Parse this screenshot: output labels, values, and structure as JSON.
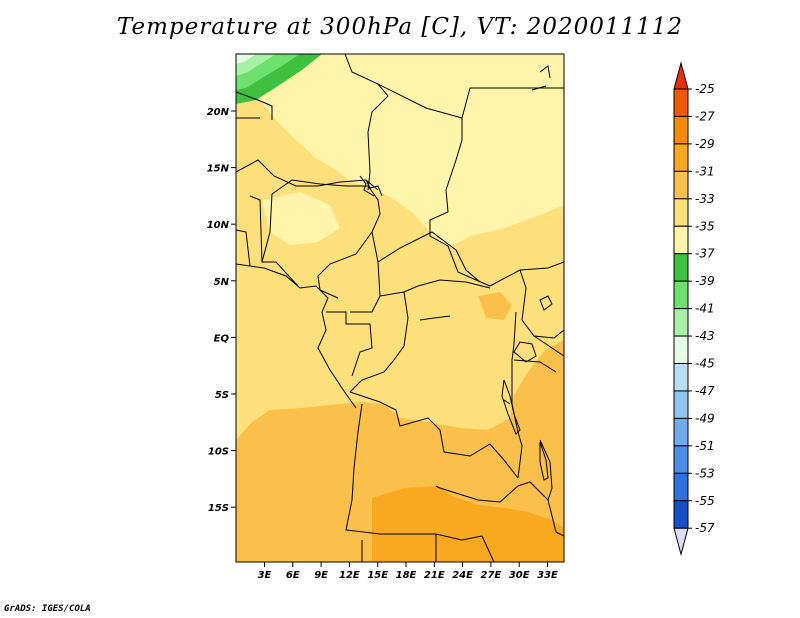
{
  "title": "Temperature at 300hPa [C], VT: 2020011112",
  "credit": "GrADS: IGES/COLA",
  "x_ticks": [
    "3E",
    "6E",
    "9E",
    "12E",
    "15E",
    "18E",
    "21E",
    "24E",
    "27E",
    "30E",
    "33E"
  ],
  "y_ticks": [
    "20N",
    "15N",
    "10N",
    "5N",
    "EQ",
    "5S",
    "10S",
    "15S"
  ],
  "colorbar": {
    "labels": [
      "-25",
      "-27",
      "-29",
      "-31",
      "-33",
      "-35",
      "-37",
      "-39",
      "-41",
      "-43",
      "-45",
      "-47",
      "-49",
      "-51",
      "-53",
      "-55",
      "-57"
    ],
    "colors": [
      "#f05a05",
      "#f58a05",
      "#f9a91f",
      "#fbc04c",
      "#fde07c",
      "#fff4a9",
      "#3fc13f",
      "#6ee06e",
      "#a6f1a6",
      "#e4fbe4",
      "#b8def4",
      "#92c6f0",
      "#6faaed",
      "#4f8ee6",
      "#2f71dd",
      "#1550c6",
      "#08139d"
    ],
    "top_arrow_color": "#e8300a",
    "bottom_arrow_color": "#dcdcf8"
  },
  "field_colors": {
    "band_33_31": "#fde07c",
    "band_35_33": "#fff4a9",
    "band_31_29": "#fbc04c",
    "band_29_27": "#f9a91f",
    "cold_37": "#3fc13f",
    "cold_39": "#6ee06e",
    "cold_41": "#a6f1a6",
    "cold_43": "#e4fbe4"
  }
}
